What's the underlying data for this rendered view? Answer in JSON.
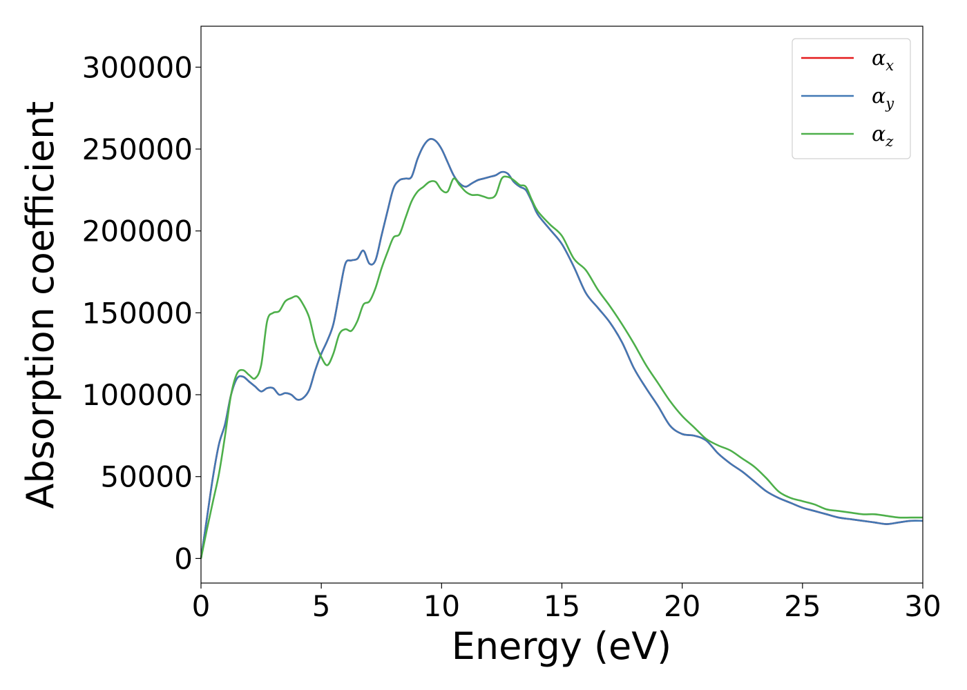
{
  "chart_data": {
    "type": "line",
    "title": "",
    "xlabel": "Energy (eV)",
    "ylabel": "Absorption coefficient",
    "xlim": [
      0,
      30
    ],
    "ylim": [
      -15000,
      325000
    ],
    "xticks": [
      0,
      5,
      10,
      15,
      20,
      25,
      30
    ],
    "yticks": [
      0,
      50000,
      100000,
      150000,
      200000,
      250000,
      300000
    ],
    "xtick_labels": [
      "0",
      "5",
      "10",
      "15",
      "20",
      "25",
      "30"
    ],
    "ytick_labels": [
      "0",
      "50000",
      "100000",
      "150000",
      "200000",
      "250000",
      "300000"
    ],
    "grid": false,
    "legend_position": "top-right",
    "series": [
      {
        "name": "αx",
        "base": "α",
        "sub": "x",
        "color": "#e41a1c",
        "x": [
          0,
          0.25,
          0.5,
          0.75,
          1.0,
          1.25,
          1.5,
          1.75,
          2.0,
          2.25,
          2.5,
          2.75,
          3.0,
          3.25,
          3.5,
          3.75,
          4.0,
          4.25,
          4.5,
          4.75,
          5.0,
          5.25,
          5.5,
          5.75,
          6.0,
          6.25,
          6.5,
          6.75,
          7.0,
          7.25,
          7.5,
          7.75,
          8.0,
          8.25,
          8.5,
          8.75,
          9.0,
          9.25,
          9.5,
          9.75,
          10.0,
          10.25,
          10.5,
          10.75,
          11.0,
          11.25,
          11.5,
          11.75,
          12.0,
          12.25,
          12.5,
          12.75,
          13.0,
          13.25,
          13.5,
          13.75,
          14.0,
          14.5,
          15.0,
          15.5,
          16.0,
          16.5,
          17.0,
          17.5,
          18.0,
          18.5,
          19.0,
          19.5,
          20.0,
          20.5,
          21.0,
          21.5,
          22.0,
          22.5,
          23.0,
          23.5,
          24.0,
          24.5,
          25.0,
          25.5,
          26.0,
          26.5,
          27.0,
          27.5,
          28.0,
          28.5,
          29.0,
          29.5,
          30.0
        ],
        "y": [
          0,
          25000,
          50000,
          70000,
          82000,
          100000,
          110000,
          111000,
          108000,
          105000,
          102000,
          104000,
          104000,
          100000,
          101000,
          100000,
          97000,
          98000,
          103000,
          115000,
          125000,
          133000,
          143000,
          162000,
          180000,
          182000,
          183000,
          188000,
          180000,
          182000,
          197000,
          212000,
          226000,
          231000,
          232000,
          233000,
          244000,
          252000,
          256000,
          255000,
          250000,
          242000,
          234000,
          229000,
          227000,
          229000,
          231000,
          232000,
          233000,
          234000,
          236000,
          235000,
          230000,
          227000,
          225000,
          218000,
          210000,
          201000,
          192000,
          178000,
          162000,
          153000,
          144000,
          132000,
          116000,
          104000,
          93000,
          81000,
          76000,
          75000,
          72000,
          64000,
          58000,
          53000,
          47000,
          41000,
          37000,
          34000,
          31000,
          29000,
          27000,
          25000,
          24000,
          23000,
          22000,
          21000,
          22000,
          23000,
          23000
        ]
      },
      {
        "name": "αy",
        "base": "α",
        "sub": "y",
        "color": "#4178b4",
        "x": [
          0,
          0.25,
          0.5,
          0.75,
          1.0,
          1.25,
          1.5,
          1.75,
          2.0,
          2.25,
          2.5,
          2.75,
          3.0,
          3.25,
          3.5,
          3.75,
          4.0,
          4.25,
          4.5,
          4.75,
          5.0,
          5.25,
          5.5,
          5.75,
          6.0,
          6.25,
          6.5,
          6.75,
          7.0,
          7.25,
          7.5,
          7.75,
          8.0,
          8.25,
          8.5,
          8.75,
          9.0,
          9.25,
          9.5,
          9.75,
          10.0,
          10.25,
          10.5,
          10.75,
          11.0,
          11.25,
          11.5,
          11.75,
          12.0,
          12.25,
          12.5,
          12.75,
          13.0,
          13.25,
          13.5,
          13.75,
          14.0,
          14.5,
          15.0,
          15.5,
          16.0,
          16.5,
          17.0,
          17.5,
          18.0,
          18.5,
          19.0,
          19.5,
          20.0,
          20.5,
          21.0,
          21.5,
          22.0,
          22.5,
          23.0,
          23.5,
          24.0,
          24.5,
          25.0,
          25.5,
          26.0,
          26.5,
          27.0,
          27.5,
          28.0,
          28.5,
          29.0,
          29.5,
          30.0
        ],
        "y": [
          0,
          25000,
          50000,
          70000,
          82000,
          100000,
          110000,
          111000,
          108000,
          105000,
          102000,
          104000,
          104000,
          100000,
          101000,
          100000,
          97000,
          98000,
          103000,
          115000,
          125000,
          133000,
          143000,
          162000,
          180000,
          182000,
          183000,
          188000,
          180000,
          182000,
          197000,
          212000,
          226000,
          231000,
          232000,
          233000,
          244000,
          252000,
          256000,
          255000,
          250000,
          242000,
          234000,
          229000,
          227000,
          229000,
          231000,
          232000,
          233000,
          234000,
          236000,
          235000,
          230000,
          227000,
          225000,
          218000,
          210000,
          201000,
          192000,
          178000,
          162000,
          153000,
          144000,
          132000,
          116000,
          104000,
          93000,
          81000,
          76000,
          75000,
          72000,
          64000,
          58000,
          53000,
          47000,
          41000,
          37000,
          34000,
          31000,
          29000,
          27000,
          25000,
          24000,
          23000,
          22000,
          21000,
          22000,
          23000,
          23000
        ]
      },
      {
        "name": "αz",
        "base": "α",
        "sub": "z",
        "color": "#4daf4a",
        "x": [
          0,
          0.25,
          0.5,
          0.75,
          1.0,
          1.25,
          1.5,
          1.75,
          2.0,
          2.25,
          2.5,
          2.75,
          3.0,
          3.25,
          3.5,
          3.75,
          4.0,
          4.25,
          4.5,
          4.75,
          5.0,
          5.25,
          5.5,
          5.75,
          6.0,
          6.25,
          6.5,
          6.75,
          7.0,
          7.25,
          7.5,
          7.75,
          8.0,
          8.25,
          8.5,
          8.75,
          9.0,
          9.25,
          9.5,
          9.75,
          10.0,
          10.25,
          10.5,
          10.75,
          11.0,
          11.25,
          11.5,
          11.75,
          12.0,
          12.25,
          12.5,
          12.75,
          13.0,
          13.25,
          13.5,
          13.75,
          14.0,
          14.5,
          15.0,
          15.5,
          16.0,
          16.5,
          17.0,
          17.5,
          18.0,
          18.5,
          19.0,
          19.5,
          20.0,
          20.5,
          21.0,
          21.5,
          22.0,
          22.5,
          23.0,
          23.5,
          24.0,
          24.5,
          25.0,
          25.5,
          26.0,
          26.5,
          27.0,
          27.5,
          28.0,
          28.5,
          29.0,
          29.5,
          30.0
        ],
        "y": [
          0,
          18000,
          35000,
          52000,
          75000,
          100000,
          113000,
          115000,
          112000,
          110000,
          118000,
          145000,
          150000,
          151000,
          157000,
          159000,
          160000,
          155000,
          147000,
          132000,
          123000,
          118000,
          125000,
          137000,
          140000,
          139000,
          145000,
          155000,
          157000,
          165000,
          177000,
          187000,
          196000,
          198000,
          208000,
          218000,
          224000,
          227000,
          230000,
          230000,
          225000,
          224000,
          232000,
          228000,
          224000,
          222000,
          222000,
          221000,
          220000,
          222000,
          232000,
          233000,
          231000,
          228000,
          227000,
          219000,
          212000,
          204000,
          197000,
          183000,
          176000,
          164000,
          154000,
          143000,
          131000,
          118000,
          107000,
          96000,
          87000,
          80000,
          73000,
          69000,
          66000,
          61000,
          56000,
          49000,
          41000,
          37000,
          35000,
          33000,
          30000,
          29000,
          28000,
          27000,
          27000,
          26000,
          25000,
          25000,
          25000
        ]
      }
    ]
  }
}
